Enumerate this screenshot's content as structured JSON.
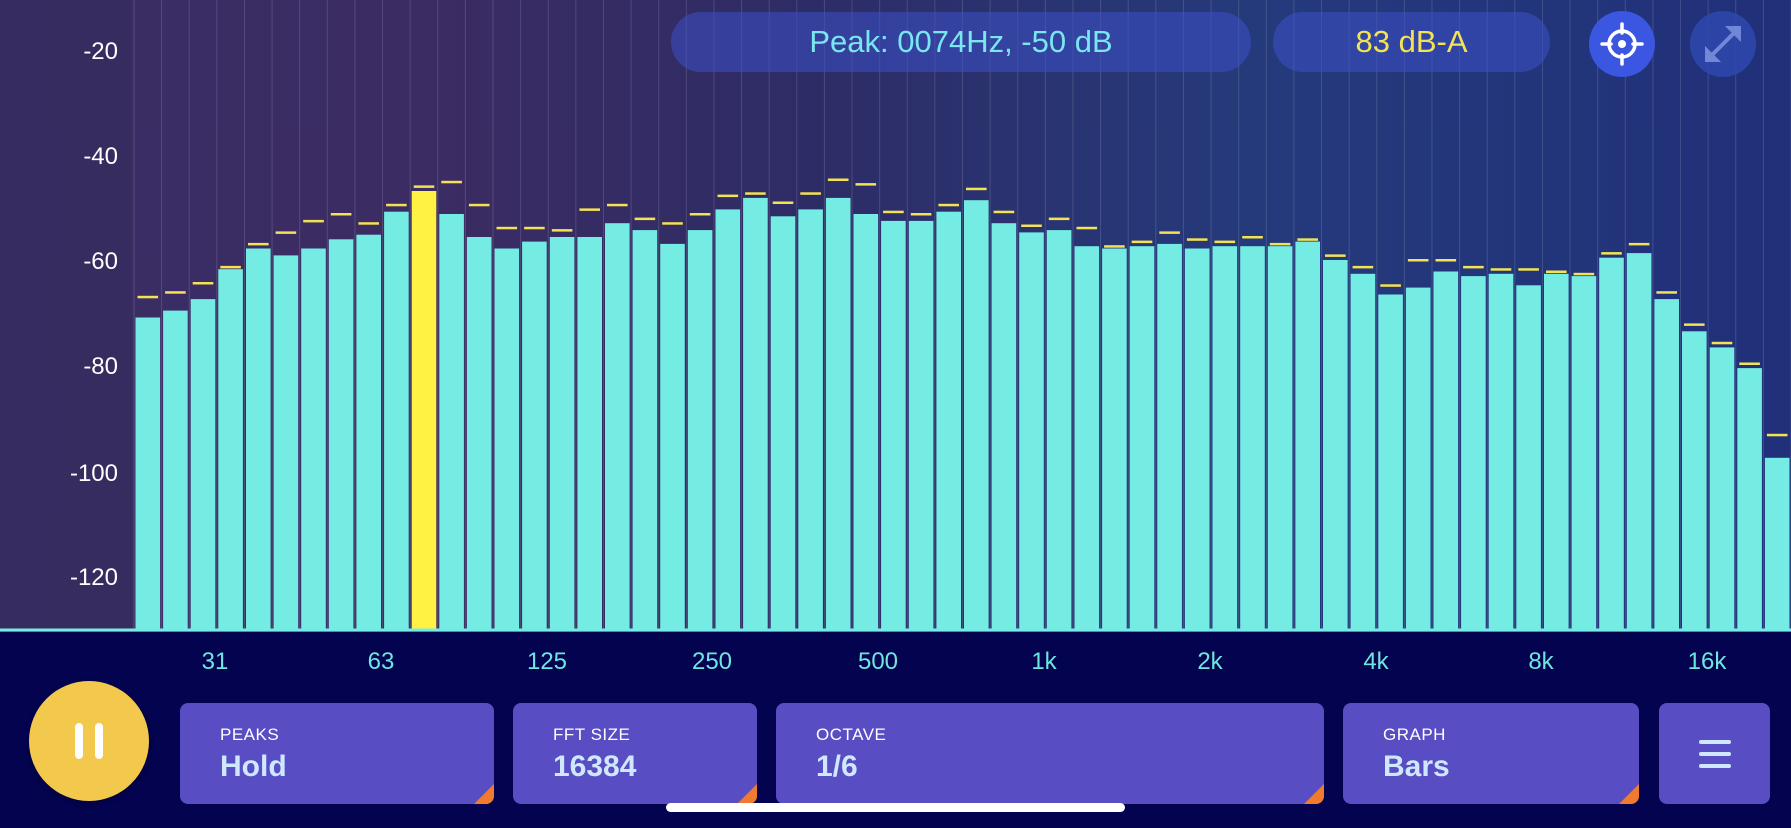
{
  "header": {
    "peak_readout": "Peak: 0074Hz, -50 dB",
    "level_readout": "83 dB-A",
    "target_icon": "crosshair-target-icon",
    "expand_icon": "expand-diagonal-icon"
  },
  "controls": {
    "pause_icon": "pause-icon",
    "peaks": {
      "label": "PEAKS",
      "value": "Hold"
    },
    "fft_size": {
      "label": "FFT SIZE",
      "value": "16384"
    },
    "octave": {
      "label": "OCTAVE",
      "value": "1/6"
    },
    "graph": {
      "label": "GRAPH",
      "value": "Bars"
    },
    "menu_icon": "hamburger-menu-icon"
  },
  "colors": {
    "bar": "#74ebe3",
    "selected_bar": "#fff242",
    "peak_marker": "#f3e354",
    "pill_peak_text": "#79e6f0",
    "pill_level_text": "#f3e354",
    "accent_button": "#584dc3",
    "pause_button": "#f2c94c"
  },
  "chart_data": {
    "type": "bar",
    "x_scale": "log",
    "x_tick_labels": [
      "31",
      "63",
      "125",
      "250",
      "500",
      "1k",
      "2k",
      "4k",
      "8k",
      "16k"
    ],
    "y_tick_labels": [
      "-20",
      "-40",
      "-60",
      "-80",
      "-100",
      "-120"
    ],
    "ylim": [
      -130,
      -8
    ],
    "selected_index": 10,
    "series": [
      {
        "values": [
          -77.5,
          -76.0,
          -73.5,
          -67.0,
          -62.5,
          -64.0,
          -62.5,
          -60.5,
          -59.5,
          -54.5,
          -50.0,
          -55.0,
          -60.0,
          -62.5,
          -61.0,
          -60.0,
          -60.0,
          -57.0,
          -58.5,
          -61.5,
          -58.5,
          -54.0,
          -51.5,
          -55.5,
          -54.0,
          -51.5,
          -55.0,
          -56.5,
          -56.5,
          -54.5,
          -52.0,
          -57.0,
          -59.0,
          -58.5,
          -62.0,
          -62.5,
          -62.0,
          -61.5,
          -62.5,
          -62.0,
          -62.0,
          -62.0,
          -61.0,
          -65.0,
          -68.0,
          -72.5,
          -71.0,
          -67.5,
          -68.5,
          -68.0,
          -70.5,
          -68.0,
          -68.5,
          -64.5,
          -63.5,
          -73.5,
          -80.5,
          -84.0,
          -88.5,
          -108.0
        ]
      },
      {
        "name": "peak hold",
        "values": [
          -73.0,
          -72.0,
          -70.0,
          -66.5,
          -61.5,
          -59.0,
          -56.5,
          -55.0,
          -57.0,
          -53.0,
          -49.0,
          -48.0,
          -53.0,
          -58.0,
          -58.0,
          -58.5,
          -54.0,
          -53.0,
          -56.0,
          -57.0,
          -55.0,
          -51.0,
          -50.5,
          -52.5,
          -50.5,
          -47.5,
          -48.5,
          -54.5,
          -55.0,
          -53.0,
          -49.5,
          -54.5,
          -57.5,
          -56.0,
          -58.0,
          -62.0,
          -61.0,
          -59.0,
          -60.5,
          -61.0,
          -60.0,
          -61.5,
          -60.5,
          -64.0,
          -66.5,
          -70.5,
          -65.0,
          -65.0,
          -66.5,
          -67.0,
          -67.0,
          -67.5,
          -68.0,
          -63.5,
          -61.5,
          -72.0,
          -79.0,
          -83.0,
          -87.5,
          -103.0
        ]
      }
    ]
  }
}
